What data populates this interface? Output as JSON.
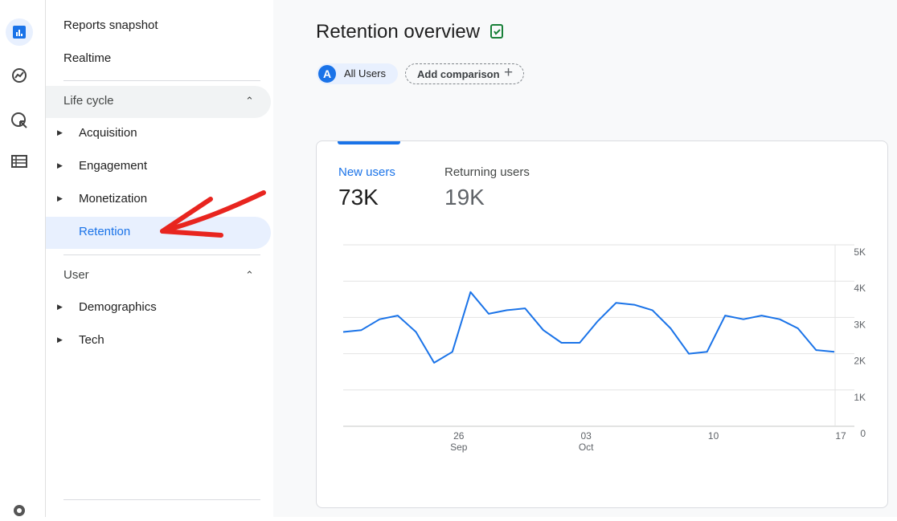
{
  "nav": {
    "top": [
      "Reports snapshot",
      "Realtime"
    ],
    "sections": [
      {
        "title": "Life cycle",
        "items": [
          {
            "label": "Acquisition"
          },
          {
            "label": "Engagement"
          },
          {
            "label": "Monetization"
          },
          {
            "label": "Retention",
            "selected": true
          }
        ]
      },
      {
        "title": "User",
        "items": [
          {
            "label": "Demographics"
          },
          {
            "label": "Tech"
          }
        ]
      }
    ]
  },
  "header": {
    "title": "Retention overview",
    "avatar": "A",
    "segment": "All Users",
    "add": "Add comparison"
  },
  "card": {
    "tabs": [
      {
        "label": "New users",
        "value": "73K",
        "selected": true
      },
      {
        "label": "Returning users",
        "value": "19K"
      }
    ]
  },
  "chart_data": {
    "type": "line",
    "categories": [
      null,
      null,
      null,
      null,
      null,
      null,
      "26",
      null,
      null,
      null,
      null,
      null,
      null,
      "03",
      null,
      null,
      null,
      null,
      null,
      null,
      "10",
      null,
      null,
      null,
      null,
      null,
      null,
      "17"
    ],
    "category_months": [
      null,
      null,
      null,
      null,
      null,
      null,
      "Sep",
      null,
      null,
      null,
      null,
      null,
      null,
      "Oct",
      null,
      null,
      null,
      null,
      null,
      null,
      null,
      null,
      null,
      null,
      null,
      null,
      null,
      null
    ],
    "series": [
      {
        "name": "New users",
        "color": "#1a73e8",
        "values": [
          2600,
          2650,
          2950,
          3050,
          2600,
          1750,
          2050,
          3700,
          3100,
          3200,
          3250,
          2650,
          2300,
          2300,
          2900,
          3400,
          3350,
          3200,
          2700,
          2000,
          2050,
          3050,
          2950,
          3050,
          2950,
          2700,
          2100,
          2050
        ]
      }
    ],
    "ylim": [
      0,
      5000
    ],
    "yticks": [
      0,
      {
        "value": 1000,
        "label": "1K"
      },
      {
        "value": 2000,
        "label": "2K"
      },
      {
        "value": 3000,
        "label": "3K"
      },
      {
        "value": 4000,
        "label": "4K"
      },
      {
        "value": 5000,
        "label": "5K"
      }
    ],
    "grid": true
  }
}
